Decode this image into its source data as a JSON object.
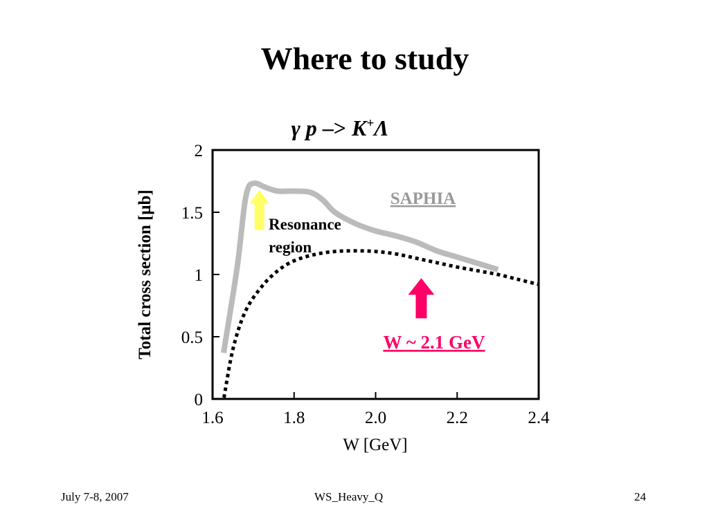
{
  "slide": {
    "title": "Where to study",
    "footer_left": "July 7-8, 2007",
    "footer_center": "WS_Heavy_Q",
    "footer_right": "24"
  },
  "chart_data": {
    "type": "line",
    "title": {
      "gamma": "γ",
      "p": "p",
      "arrow": "–>",
      "k": "K",
      "k_sup": "+",
      "lambda": "Λ"
    },
    "xlabel": "W [GeV]",
    "ylabel": "Total cross section [μb]",
    "xlim": [
      1.6,
      2.4
    ],
    "ylim": [
      0,
      2
    ],
    "xticks": [
      1.6,
      1.8,
      2.0,
      2.2,
      2.4
    ],
    "xtick_labels": [
      "1.6",
      "1.8",
      "2.0",
      "2.2",
      "2.4"
    ],
    "yticks": [
      0,
      0.5,
      1,
      1.5,
      2
    ],
    "ytick_labels": [
      "0",
      "0.5",
      "1",
      "1.5",
      "2"
    ],
    "grid": false,
    "series": [
      {
        "name": "SAPHIA",
        "style": "solid",
        "color": "#bbbbbb",
        "x": [
          1.627,
          1.66,
          1.678,
          1.688,
          1.698,
          1.71,
          1.73,
          1.76,
          1.8,
          1.84,
          1.87,
          1.9,
          1.95,
          2.0,
          2.05,
          2.1,
          2.15,
          2.2,
          2.25,
          2.3
        ],
        "y": [
          0.37,
          1.05,
          1.55,
          1.7,
          1.73,
          1.73,
          1.7,
          1.67,
          1.67,
          1.66,
          1.6,
          1.5,
          1.41,
          1.35,
          1.31,
          1.26,
          1.19,
          1.14,
          1.09,
          1.04
        ]
      },
      {
        "name": "",
        "style": "dotted",
        "color": "#000000",
        "x": [
          1.628,
          1.65,
          1.68,
          1.72,
          1.76,
          1.8,
          1.85,
          1.9,
          1.95,
          2.0,
          2.05,
          2.1,
          2.15,
          2.2,
          2.25,
          2.3,
          2.35,
          2.4
        ],
        "y": [
          0.01,
          0.4,
          0.7,
          0.9,
          1.03,
          1.11,
          1.16,
          1.185,
          1.19,
          1.185,
          1.165,
          1.13,
          1.095,
          1.06,
          1.03,
          1.0,
          0.96,
          0.92
        ]
      }
    ],
    "annotations": [
      {
        "id": "saphia",
        "text": "SAPHIA",
        "color": "#999999",
        "underline": true
      },
      {
        "id": "resonance",
        "lines": [
          "Resonance",
          "region"
        ],
        "color": "#000000",
        "arrow_color": "#ffff66",
        "x": 1.715,
        "y": 1.68
      },
      {
        "id": "w",
        "text": "W ~ 2.1 GeV",
        "color": "#ff0066",
        "underline": true,
        "arrow_color": "#ff0066",
        "x": 2.112,
        "y": 0.97
      }
    ]
  }
}
